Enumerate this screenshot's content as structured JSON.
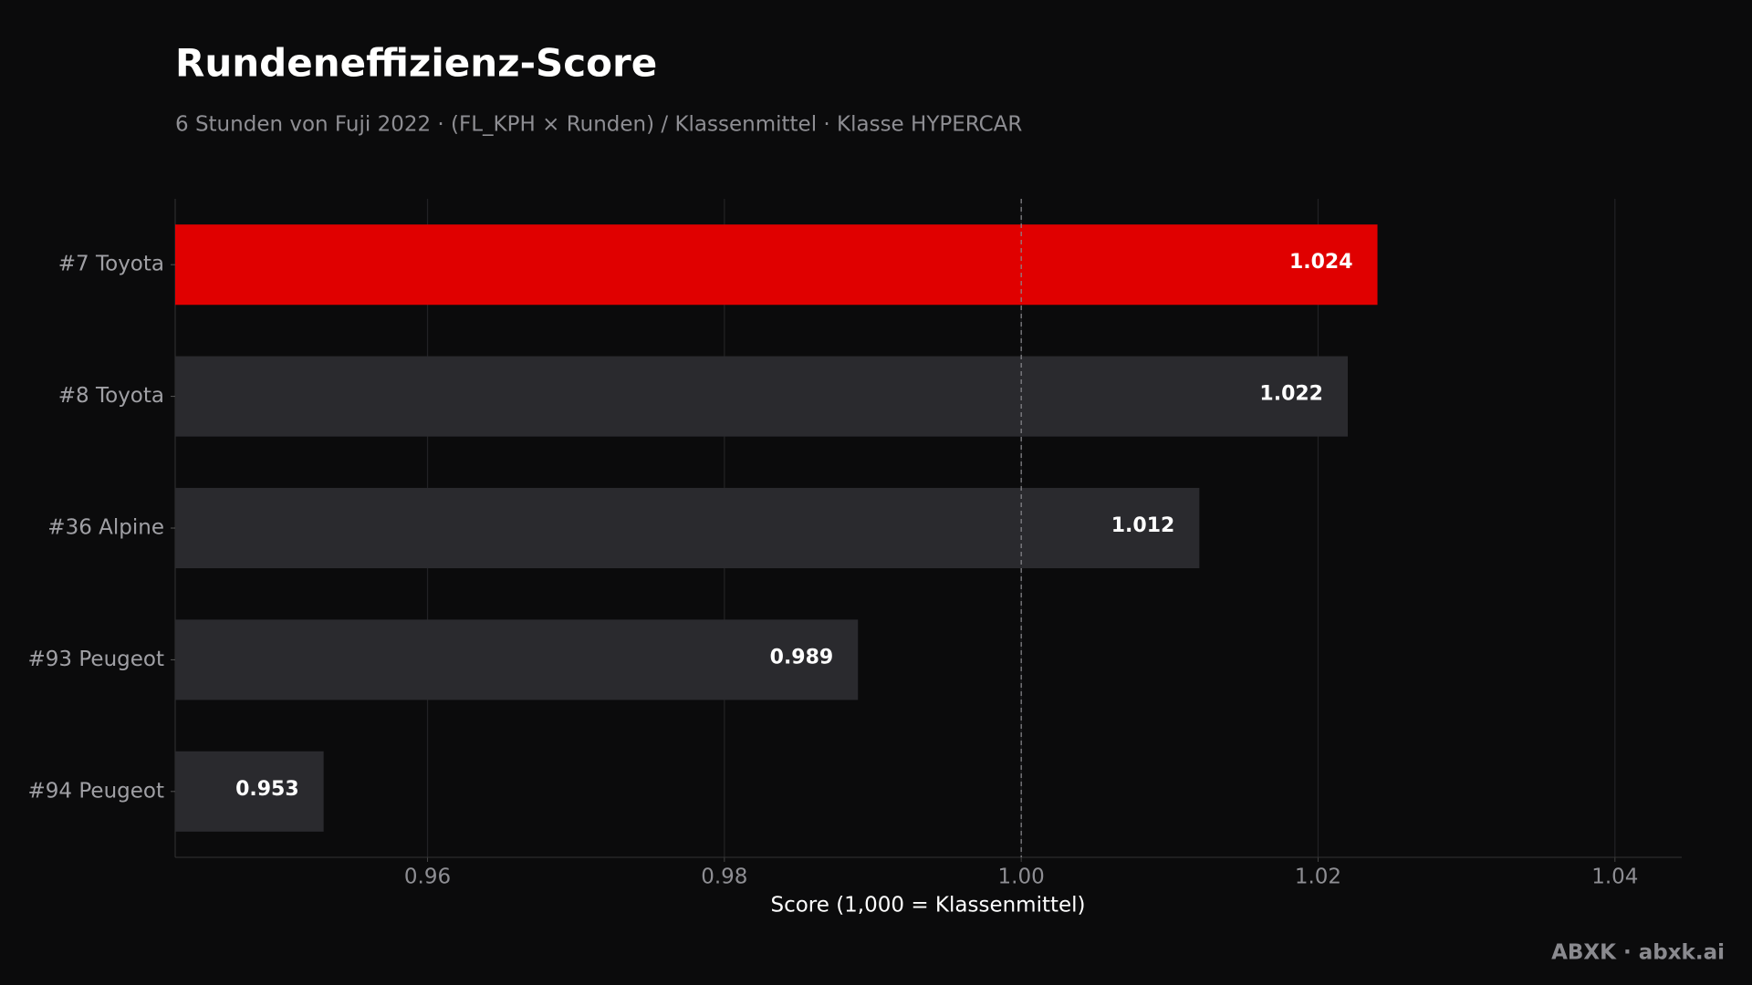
{
  "chart_data": {
    "type": "barh",
    "title": "Rundeneffizienz-Score",
    "subtitle": "6 Stunden von Fuji 2022 · (FL_KPH × Runden) / Klassenmittel · Klasse HYPERCAR",
    "x_label": "Score (1,000 = Klassenmittel)",
    "categories": [
      "#7 Toyota",
      "#8 Toyota",
      "#36 Alpine",
      "#93 Peugeot",
      "#94 Peugeot"
    ],
    "values": [
      1.024,
      1.022,
      1.012,
      0.989,
      0.953
    ],
    "colors": [
      "#e00000",
      "#2a2a2e",
      "#2a2a2e",
      "#2a2a2e",
      "#2a2a2e"
    ],
    "xlim": [
      0.943,
      1.0445
    ],
    "xticks": [
      0.96,
      0.98,
      {
        "value": 1,
        "label": "1.00"
      },
      1.02,
      1.04
    ],
    "reference_value": 1,
    "grid": true,
    "footer": "ABXK · abxk.ai"
  }
}
